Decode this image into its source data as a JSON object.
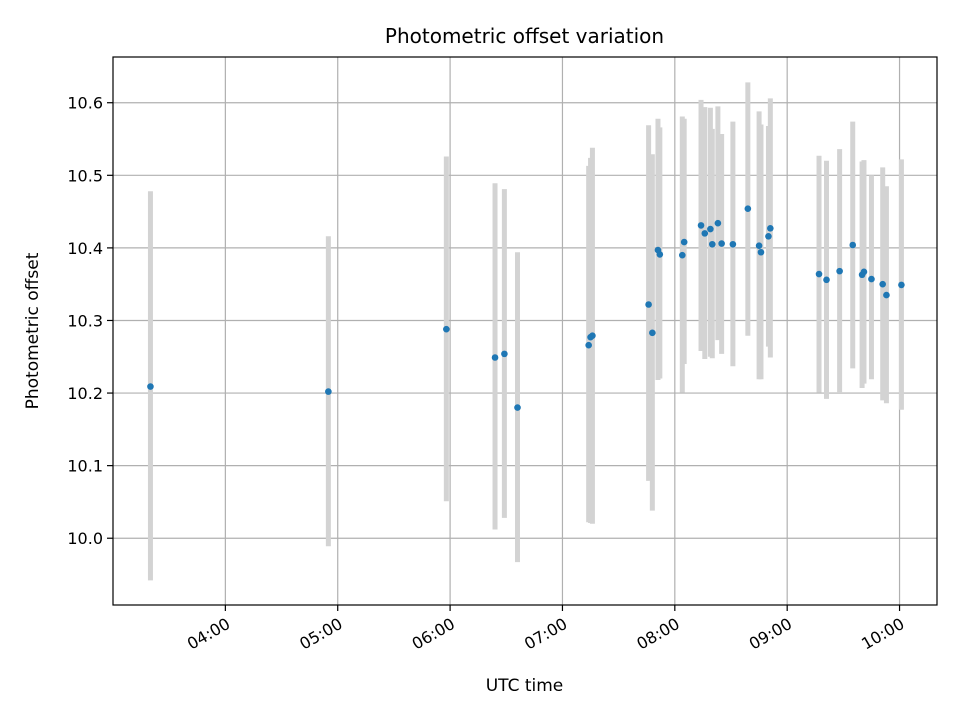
{
  "chart_data": {
    "type": "scatter",
    "title": "Photometric offset variation",
    "xlabel": "UTC time",
    "ylabel": "Photometric offset",
    "x_ticks": [
      "04:00",
      "05:00",
      "06:00",
      "07:00",
      "08:00",
      "09:00",
      "10:00"
    ],
    "y_ticks": [
      "10.0",
      "10.1",
      "10.2",
      "10.3",
      "10.4",
      "10.5",
      "10.6"
    ],
    "xlim": [
      "03:00",
      "10:20"
    ],
    "ylim": [
      9.908,
      10.663
    ],
    "grid": true,
    "colors": {
      "point": "#1f77b4",
      "errorbar": "#d3d3d3",
      "grid": "#b0b0b0"
    },
    "points": [
      {
        "x": "03:20",
        "y": 10.209,
        "ylow": 9.942,
        "yhigh": 10.478
      },
      {
        "x": "04:55",
        "y": 10.202,
        "ylow": 9.989,
        "yhigh": 10.416
      },
      {
        "x": "05:58",
        "y": 10.288,
        "ylow": 10.051,
        "yhigh": 10.526
      },
      {
        "x": "06:24",
        "y": 10.249,
        "ylow": 10.012,
        "yhigh": 10.489
      },
      {
        "x": "06:29",
        "y": 10.254,
        "ylow": 10.028,
        "yhigh": 10.481
      },
      {
        "x": "06:36",
        "y": 10.18,
        "ylow": 9.967,
        "yhigh": 10.394
      },
      {
        "x": "07:14",
        "y": 10.266,
        "ylow": 10.022,
        "yhigh": 10.513
      },
      {
        "x": "07:15",
        "y": 10.277,
        "ylow": 10.021,
        "yhigh": 10.524
      },
      {
        "x": "07:16",
        "y": 10.279,
        "ylow": 10.02,
        "yhigh": 10.538
      },
      {
        "x": "07:46",
        "y": 10.322,
        "ylow": 10.079,
        "yhigh": 10.569
      },
      {
        "x": "07:48",
        "y": 10.283,
        "ylow": 10.038,
        "yhigh": 10.529
      },
      {
        "x": "07:51",
        "y": 10.397,
        "ylow": 10.218,
        "yhigh": 10.578
      },
      {
        "x": "07:52",
        "y": 10.391,
        "ylow": 10.22,
        "yhigh": 10.566
      },
      {
        "x": "08:04",
        "y": 10.39,
        "ylow": 10.201,
        "yhigh": 10.581
      },
      {
        "x": "08:05",
        "y": 10.408,
        "ylow": 10.24,
        "yhigh": 10.578
      },
      {
        "x": "08:14",
        "y": 10.431,
        "ylow": 10.258,
        "yhigh": 10.604
      },
      {
        "x": "08:16",
        "y": 10.42,
        "ylow": 10.247,
        "yhigh": 10.594
      },
      {
        "x": "08:19",
        "y": 10.426,
        "ylow": 10.25,
        "yhigh": 10.593
      },
      {
        "x": "08:20",
        "y": 10.405,
        "ylow": 10.248,
        "yhigh": 10.564
      },
      {
        "x": "08:23",
        "y": 10.434,
        "ylow": 10.273,
        "yhigh": 10.595
      },
      {
        "x": "08:25",
        "y": 10.406,
        "ylow": 10.254,
        "yhigh": 10.557
      },
      {
        "x": "08:31",
        "y": 10.405,
        "ylow": 10.237,
        "yhigh": 10.574
      },
      {
        "x": "08:39",
        "y": 10.454,
        "ylow": 10.279,
        "yhigh": 10.628
      },
      {
        "x": "08:45",
        "y": 10.403,
        "ylow": 10.219,
        "yhigh": 10.588
      },
      {
        "x": "08:46",
        "y": 10.394,
        "ylow": 10.219,
        "yhigh": 10.57
      },
      {
        "x": "08:50",
        "y": 10.416,
        "ylow": 10.264,
        "yhigh": 10.568
      },
      {
        "x": "08:51",
        "y": 10.427,
        "ylow": 10.249,
        "yhigh": 10.606
      },
      {
        "x": "09:17",
        "y": 10.364,
        "ylow": 10.201,
        "yhigh": 10.527
      },
      {
        "x": "09:21",
        "y": 10.356,
        "ylow": 10.192,
        "yhigh": 10.52
      },
      {
        "x": "09:28",
        "y": 10.368,
        "ylow": 10.2,
        "yhigh": 10.536
      },
      {
        "x": "09:35",
        "y": 10.404,
        "ylow": 10.234,
        "yhigh": 10.574
      },
      {
        "x": "09:40",
        "y": 10.363,
        "ylow": 10.207,
        "yhigh": 10.519
      },
      {
        "x": "09:41",
        "y": 10.367,
        "ylow": 10.213,
        "yhigh": 10.521
      },
      {
        "x": "09:45",
        "y": 10.357,
        "ylow": 10.219,
        "yhigh": 10.5
      },
      {
        "x": "09:51",
        "y": 10.35,
        "ylow": 10.19,
        "yhigh": 10.511
      },
      {
        "x": "09:53",
        "y": 10.335,
        "ylow": 10.186,
        "yhigh": 10.485
      },
      {
        "x": "10:01",
        "y": 10.349,
        "ylow": 10.177,
        "yhigh": 10.522
      }
    ]
  }
}
